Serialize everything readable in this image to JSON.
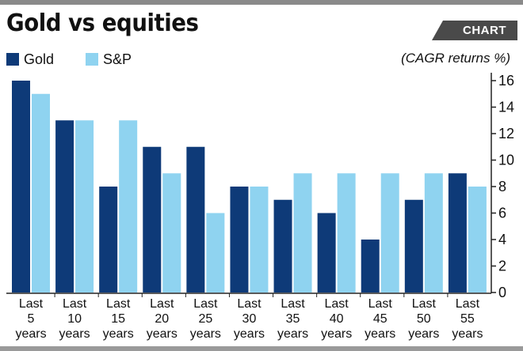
{
  "header": {
    "title": "Gold vs equities",
    "tag": "CHART",
    "units": "(CAGR returns %)"
  },
  "colors": {
    "gold": "#0e3a78",
    "sp": "#8fd3f0",
    "axis": "#222222",
    "tag_bg": "#4a4a4a"
  },
  "chart_data": {
    "type": "bar",
    "title": "Gold vs equities",
    "ylabel": "CAGR returns %",
    "xlabel": "",
    "ylim": [
      0,
      16
    ],
    "yticks": [
      0,
      2,
      4,
      6,
      8,
      10,
      12,
      14,
      16
    ],
    "categories": [
      [
        "Last",
        "5",
        "years"
      ],
      [
        "Last",
        "10",
        "years"
      ],
      [
        "Last",
        "15",
        "years"
      ],
      [
        "Last",
        "20",
        "years"
      ],
      [
        "Last",
        "25",
        "years"
      ],
      [
        "Last",
        "30",
        "years"
      ],
      [
        "Last",
        "35",
        "years"
      ],
      [
        "Last",
        "40",
        "years"
      ],
      [
        "Last",
        "45",
        "years"
      ],
      [
        "Last",
        "50",
        "years"
      ],
      [
        "Last",
        "55",
        "years"
      ]
    ],
    "series": [
      {
        "name": "Gold",
        "values": [
          16,
          13,
          8,
          11,
          11,
          8,
          7,
          6,
          4,
          7,
          9
        ]
      },
      {
        "name": "S&P",
        "values": [
          15,
          13,
          13,
          9,
          6,
          8,
          9,
          9,
          9,
          9,
          8
        ]
      }
    ],
    "legend": "top-left",
    "axis_side": "right"
  }
}
